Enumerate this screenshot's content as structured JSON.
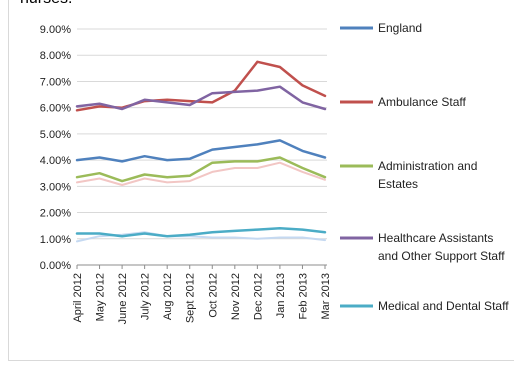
{
  "top_text_fragment": "nurses.",
  "chart_data": {
    "type": "line",
    "title": "",
    "xlabel": "",
    "ylabel": "",
    "ylim": [
      0,
      9
    ],
    "y_tick_labels": [
      "0.00%",
      "1.00%",
      "2.00%",
      "3.00%",
      "4.00%",
      "5.00%",
      "6.00%",
      "7.00%",
      "8.00%",
      "9.00%"
    ],
    "categories": [
      "April 2012",
      "May 2012",
      "June 2012",
      "July 2012",
      "Aug 2012",
      "Sept 2012",
      "Oct 2012",
      "Nov 2012",
      "Dec 2012",
      "Jan 2013",
      "Feb 2013",
      "Mar 2013"
    ],
    "legend_position": "right",
    "series": [
      {
        "name": "England",
        "color": "#4f81bd",
        "values": [
          4.0,
          4.1,
          3.95,
          4.15,
          4.0,
          4.05,
          4.4,
          4.5,
          4.6,
          4.75,
          4.35,
          4.1
        ]
      },
      {
        "name": "Ambulance Staff",
        "color": "#c0504d",
        "values": [
          5.9,
          6.05,
          6.0,
          6.25,
          6.3,
          6.25,
          6.2,
          6.65,
          7.75,
          7.55,
          6.85,
          6.45
        ]
      },
      {
        "name": "Administration and Estates",
        "color": "#9bbb59",
        "values": [
          3.35,
          3.5,
          3.2,
          3.45,
          3.35,
          3.4,
          3.9,
          3.95,
          3.95,
          4.1,
          3.7,
          3.35
        ]
      },
      {
        "name": "Healthcare Assistants and Other Support Staff",
        "color": "#8064a2",
        "values": [
          6.05,
          6.15,
          5.95,
          6.3,
          6.2,
          6.1,
          6.55,
          6.6,
          6.65,
          6.8,
          6.2,
          5.95
        ]
      },
      {
        "name": "Medical and Dental Staff",
        "color": "#4bacc6",
        "values": [
          1.2,
          1.2,
          1.1,
          1.2,
          1.1,
          1.15,
          1.25,
          1.3,
          1.35,
          1.4,
          1.35,
          1.25
        ]
      },
      {
        "name": "",
        "color": "#f2c6c4",
        "values": [
          3.15,
          3.3,
          3.05,
          3.3,
          3.15,
          3.2,
          3.55,
          3.7,
          3.7,
          3.9,
          3.55,
          3.25
        ]
      },
      {
        "name": "",
        "color": "#c5d9f1",
        "values": [
          0.9,
          1.1,
          1.15,
          1.25,
          1.1,
          1.1,
          1.05,
          1.05,
          1.0,
          1.05,
          1.05,
          0.95
        ]
      }
    ]
  }
}
